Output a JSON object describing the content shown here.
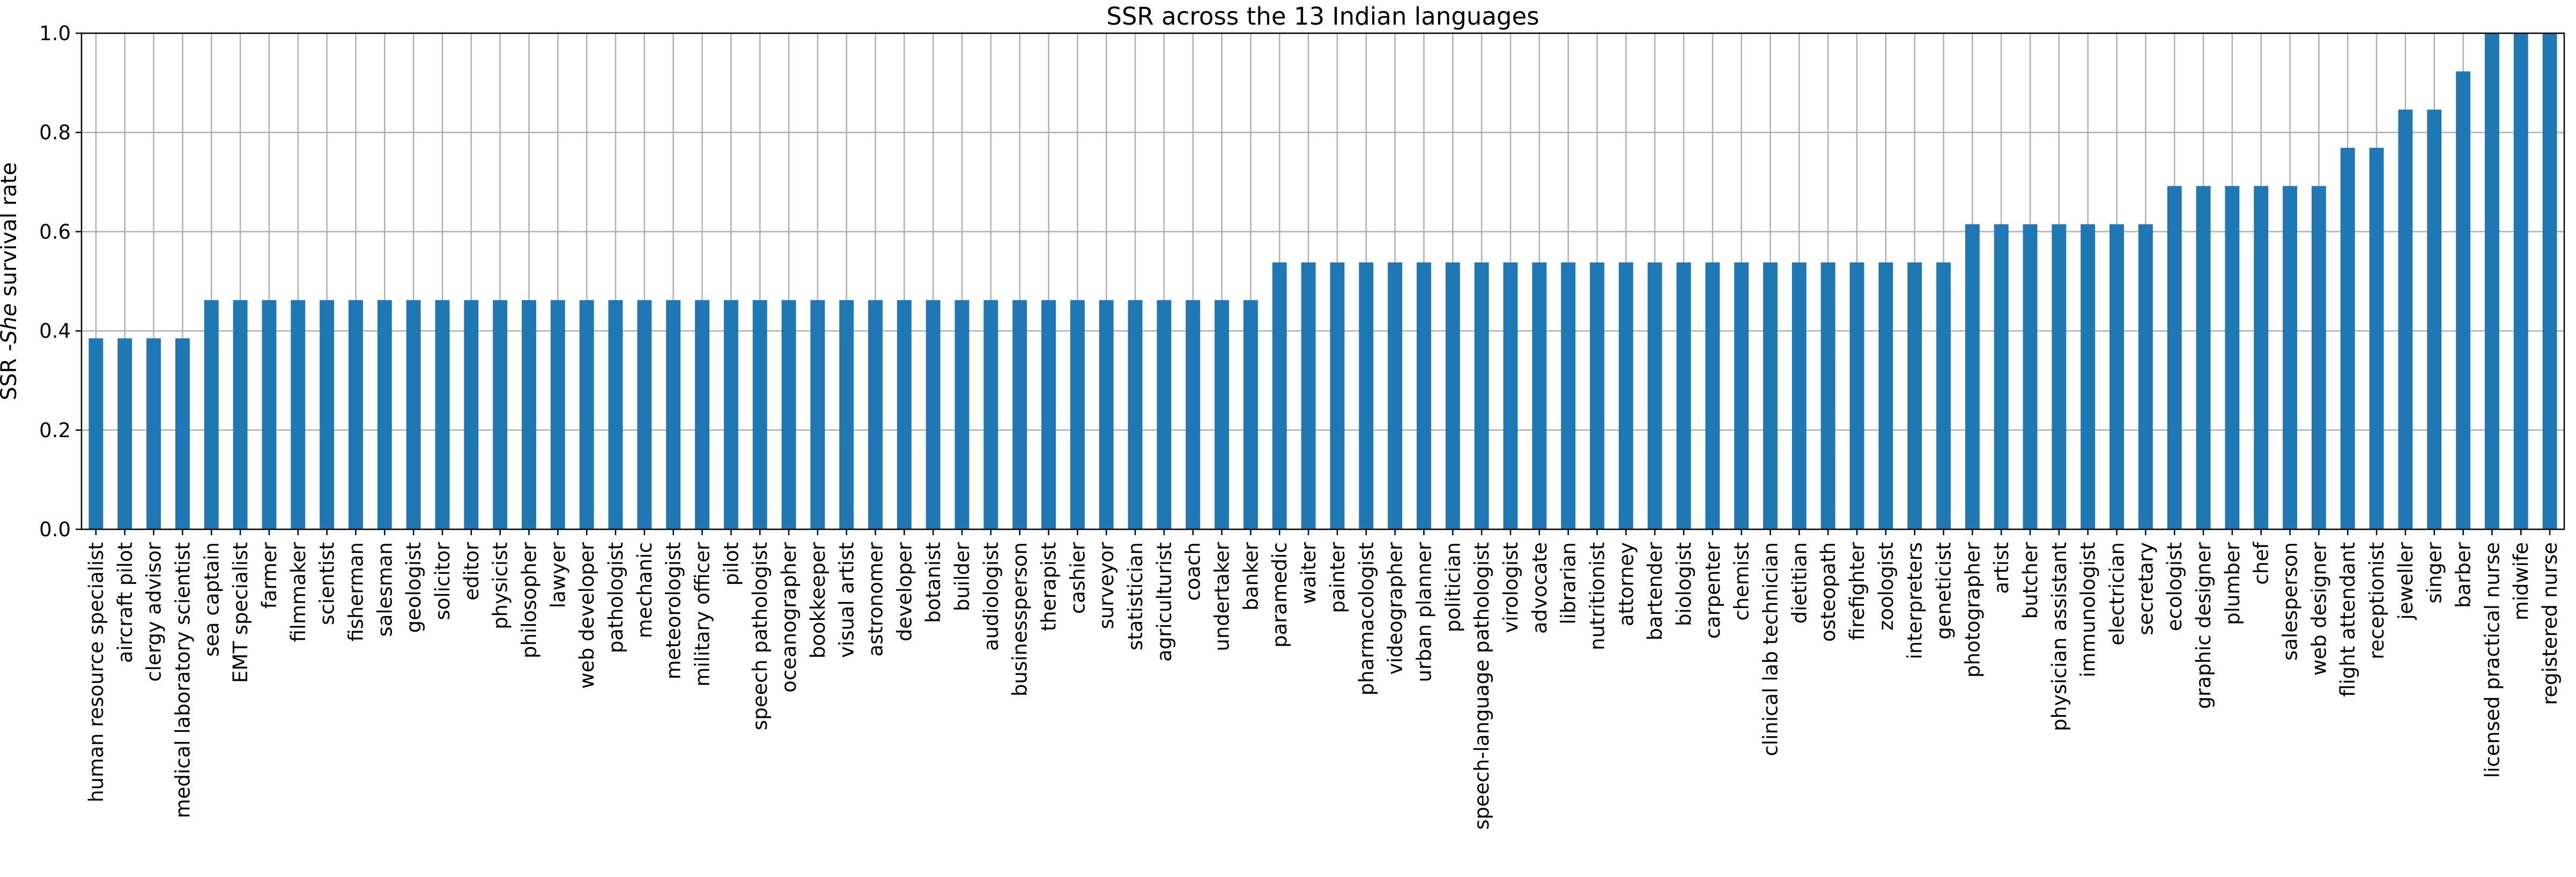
{
  "chart_data": {
    "type": "bar",
    "title": "SSR across the 13 Indian languages",
    "xlabel": "",
    "ylabel": {
      "prefix": "SSR -",
      "emphasis": "She",
      "suffix": " survival rate"
    },
    "ylim": [
      0,
      1.0
    ],
    "yticks": [
      "0.0",
      "0.2",
      "0.4",
      "0.6",
      "0.8",
      "1.0"
    ],
    "grid": true,
    "legend": "none",
    "bar_color": "#1f77b4",
    "categories": [
      "human resource specialist",
      "aircraft pilot",
      "clergy advisor",
      "medical laboratory scientist",
      "sea captain",
      "EMT specialist",
      "farmer",
      "filmmaker",
      "scientist",
      "fisherman",
      "salesman",
      "geologist",
      "solicitor",
      "editor",
      "physicist",
      "philosopher",
      "lawyer",
      "web developer",
      "pathologist",
      "mechanic",
      "meteorologist",
      "military officer",
      "pilot",
      "speech pathologist",
      "oceanographer",
      "bookkeeper",
      "visual artist",
      "astronomer",
      "developer",
      "botanist",
      "builder",
      "audiologist",
      "businessperson",
      "therapist",
      "cashier",
      "surveyor",
      "statistician",
      "agriculturist",
      "coach",
      "undertaker",
      "banker",
      "paramedic",
      "waiter",
      "painter",
      "pharmacologist",
      "videographer",
      "urban planner",
      "politician",
      "speech-language pathologist",
      "virologist",
      "advocate",
      "librarian",
      "nutritionist",
      "attorney",
      "bartender",
      "biologist",
      "carpenter",
      "chemist",
      "clinical lab technician",
      "dietitian",
      "osteopath",
      "firefighter",
      "zoologist",
      "interpreters",
      "geneticist",
      "photographer",
      "artist",
      "butcher",
      "physician assistant",
      "immunologist",
      "electrician",
      "secretary",
      "ecologist",
      "graphic designer",
      "plumber",
      "chef",
      "salesperson",
      "web designer",
      "flight attendant",
      "receptionist",
      "jeweller",
      "singer",
      "barber",
      "licensed practical nurse",
      "midwife",
      "registered nurse"
    ],
    "values": [
      0.385,
      0.385,
      0.385,
      0.385,
      0.462,
      0.462,
      0.462,
      0.462,
      0.462,
      0.462,
      0.462,
      0.462,
      0.462,
      0.462,
      0.462,
      0.462,
      0.462,
      0.462,
      0.462,
      0.462,
      0.462,
      0.462,
      0.462,
      0.462,
      0.462,
      0.462,
      0.462,
      0.462,
      0.462,
      0.462,
      0.462,
      0.462,
      0.462,
      0.462,
      0.462,
      0.462,
      0.462,
      0.462,
      0.462,
      0.462,
      0.462,
      0.538,
      0.538,
      0.538,
      0.538,
      0.538,
      0.538,
      0.538,
      0.538,
      0.538,
      0.538,
      0.538,
      0.538,
      0.538,
      0.538,
      0.538,
      0.538,
      0.538,
      0.538,
      0.538,
      0.538,
      0.538,
      0.538,
      0.538,
      0.538,
      0.615,
      0.615,
      0.615,
      0.615,
      0.615,
      0.615,
      0.615,
      0.692,
      0.692,
      0.692,
      0.692,
      0.692,
      0.692,
      0.769,
      0.769,
      0.846,
      0.846,
      0.923,
      1.0,
      1.0,
      1.0
    ]
  }
}
